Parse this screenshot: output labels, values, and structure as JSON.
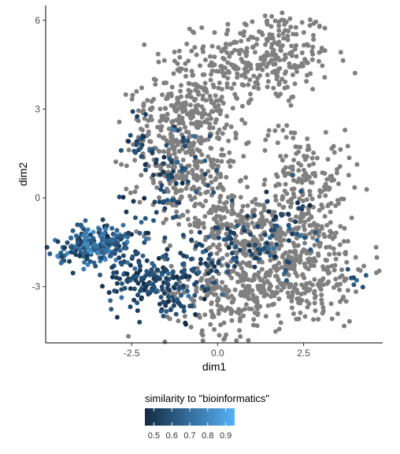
{
  "chart_data": {
    "type": "scatter",
    "title": "",
    "xlabel": "dim1",
    "ylabel": "dim2",
    "xlim": [
      -5.0,
      4.8
    ],
    "ylim": [
      -4.9,
      6.5
    ],
    "x_ticks": [
      -2.5,
      0.0,
      2.5
    ],
    "x_tick_labels": [
      "-2.5",
      "0.0",
      "2.5"
    ],
    "y_ticks": [
      -3,
      0,
      3,
      6
    ],
    "y_tick_labels": [
      "-3",
      "0",
      "3",
      "6"
    ],
    "grid": false,
    "legend": {
      "title": "similarity to \"bioinformatics\"",
      "placement": "bottom",
      "type": "colorbar",
      "range": [
        0.45,
        0.95
      ],
      "ticks": [
        0.5,
        0.6,
        0.7,
        0.8,
        0.9
      ],
      "tick_labels": [
        "0.5",
        "0.6",
        "0.7",
        "0.8",
        "0.9"
      ],
      "low_color": "#132B43",
      "high_color": "#56B1F7"
    },
    "missing_color": "#808080",
    "gray_clusters": [
      {
        "cx": 1.5,
        "cy": 4.8,
        "sx": 0.9,
        "sy": 0.8,
        "n": 260
      },
      {
        "cx": -0.6,
        "cy": 3.3,
        "sx": 0.75,
        "sy": 0.9,
        "n": 230
      },
      {
        "cx": -1.2,
        "cy": 2.0,
        "sx": 0.7,
        "sy": 0.9,
        "n": 160
      },
      {
        "cx": -0.9,
        "cy": 0.6,
        "sx": 0.7,
        "sy": 0.9,
        "n": 170
      },
      {
        "cx": 2.4,
        "cy": -2.3,
        "sx": 1.0,
        "sy": 1.0,
        "n": 320
      },
      {
        "cx": 0.3,
        "cy": -3.2,
        "sx": 0.9,
        "sy": 0.7,
        "n": 220
      },
      {
        "cx": 1.2,
        "cy": -1.4,
        "sx": 0.9,
        "sy": 0.8,
        "n": 180
      },
      {
        "cx": 2.8,
        "cy": 0.3,
        "sx": 0.6,
        "sy": 0.8,
        "n": 120
      },
      {
        "cx": 0.3,
        "cy": -0.6,
        "sx": 0.6,
        "sy": 0.5,
        "n": 90
      },
      {
        "cx": 2.1,
        "cy": 1.4,
        "sx": 0.35,
        "sy": 0.6,
        "n": 40
      }
    ],
    "colored_clusters": [
      {
        "cx": -3.6,
        "cy": -1.6,
        "sx": 0.55,
        "sy": 0.35,
        "n": 230,
        "val_mean": 0.66,
        "val_sd": 0.1
      },
      {
        "cx": -1.8,
        "cy": -2.8,
        "sx": 0.75,
        "sy": 0.55,
        "n": 200,
        "val_mean": 0.56,
        "val_sd": 0.06
      },
      {
        "cx": -1.4,
        "cy": 0.6,
        "sx": 0.6,
        "sy": 0.9,
        "n": 70,
        "val_mean": 0.56,
        "val_sd": 0.07
      },
      {
        "cx": -2.3,
        "cy": 1.8,
        "sx": 0.2,
        "sy": 0.5,
        "n": 20,
        "val_mean": 0.55,
        "val_sd": 0.05
      },
      {
        "cx": 1.8,
        "cy": -0.8,
        "sx": 0.5,
        "sy": 0.9,
        "n": 50,
        "val_mean": 0.57,
        "val_sd": 0.07
      },
      {
        "cx": 0.3,
        "cy": -1.8,
        "sx": 1.0,
        "sy": 0.5,
        "n": 60,
        "val_mean": 0.55,
        "val_sd": 0.05
      },
      {
        "cx": 3.9,
        "cy": -2.7,
        "sx": 0.2,
        "sy": 0.15,
        "n": 8,
        "val_mean": 0.58,
        "val_sd": 0.05
      }
    ]
  }
}
